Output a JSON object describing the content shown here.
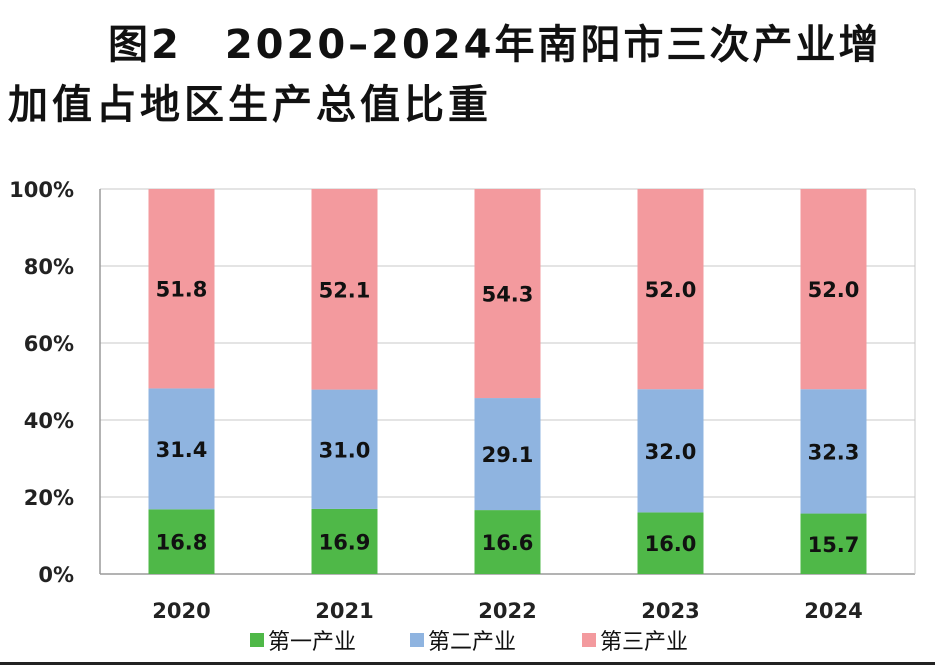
{
  "title": {
    "line1": "图2　2020–2024年南阳市三次产业增",
    "line2": "加值占地区生产总值比重"
  },
  "chart_data": {
    "type": "bar",
    "stacked": true,
    "percent_stacked": true,
    "categories": [
      "2020",
      "2021",
      "2022",
      "2023",
      "2024"
    ],
    "series": [
      {
        "name": "第一产业",
        "color": "#4fb848",
        "values": [
          16.8,
          16.9,
          16.6,
          16.0,
          15.7
        ]
      },
      {
        "name": "第二产业",
        "color": "#8fb4e0",
        "values": [
          31.4,
          31.0,
          29.1,
          32.0,
          32.3
        ]
      },
      {
        "name": "第三产业",
        "color": "#f39a9e",
        "values": [
          51.8,
          52.1,
          54.3,
          52.0,
          52.0
        ]
      }
    ],
    "ylim": [
      0,
      100
    ],
    "yticks": [
      "0%",
      "20%",
      "40%",
      "60%",
      "80%",
      "100%"
    ],
    "grid": true,
    "legend_position": "bottom"
  }
}
